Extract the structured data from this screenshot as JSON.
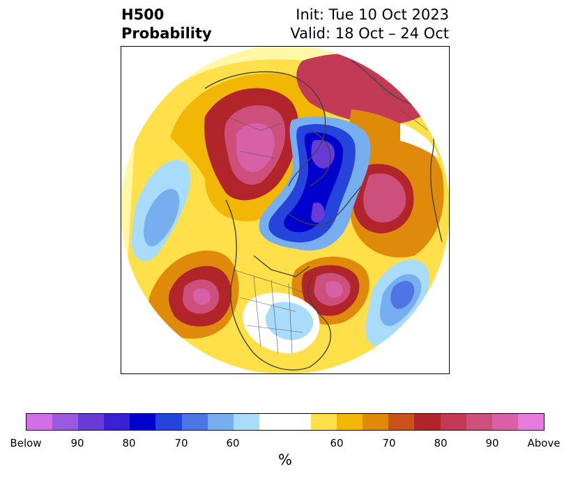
{
  "title": {
    "left_line1": "H500",
    "left_line2": "Probability",
    "right_line1": "Init: Tue 10 Oct 2023",
    "right_line2": "Valid: 18 Oct – 24 Oct"
  },
  "colorbar": {
    "units": "%",
    "tick_labels": [
      "Below",
      "90",
      "80",
      "70",
      "60",
      "60",
      "70",
      "80",
      "90",
      "Above"
    ],
    "colors": [
      "#d36fe6",
      "#9b59e0",
      "#6a3ad6",
      "#3b1fd2",
      "#0000cd",
      "#2444dc",
      "#4f74e6",
      "#76aef0",
      "#a9dbfa",
      "#ffffff",
      "#ffe04a",
      "#f2b705",
      "#e08a0c",
      "#c9531a",
      "#b0242a",
      "#c23a55",
      "#cc4f7c",
      "#d760a6",
      "#e87be0"
    ]
  },
  "map": {
    "projection": "north-polar-stereographic",
    "field": "500 hPa height anomaly probability",
    "below_color": "#0000cd",
    "above_color": "#b0242a"
  }
}
